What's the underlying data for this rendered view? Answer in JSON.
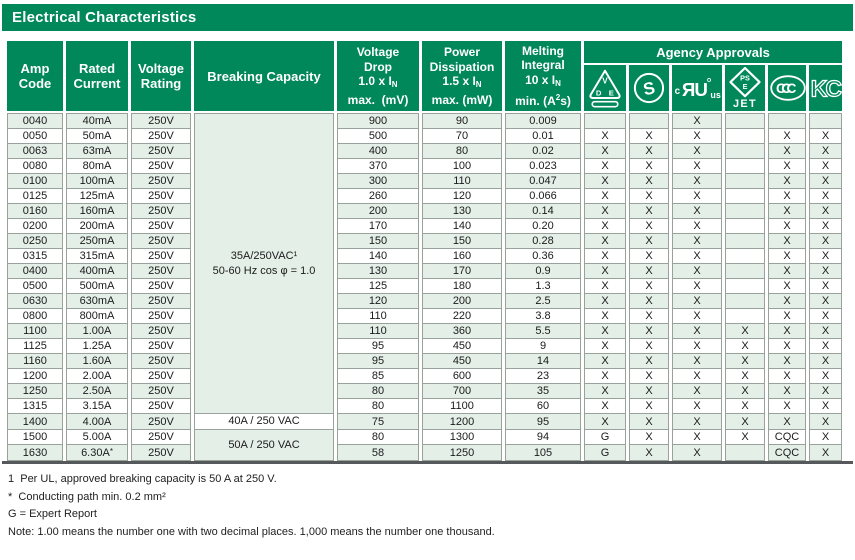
{
  "title": "Electrical Characteristics",
  "colors": {
    "header_green": "#00875A",
    "row_mint": "#E4EFE8",
    "grid_gray": "#98A29B",
    "bottom_bar_gray": "#56595B"
  },
  "headers": {
    "amp_code": "Amp<br>Code",
    "rated_current": "Rated<br>Current",
    "voltage_rating": "Voltage<br>Rating",
    "breaking_capacity": "Breaking Capacity",
    "voltage_drop": "Voltage<br>Drop<br>1.0 x I<sub>N</sub><br>max.&nbsp; (mV)",
    "power_dissipation": "Power<br>Dissipation<br>1.5 x I<sub>N</sub><br>max. (mW)",
    "melting_integral": "Melting<br>Integral<br>10 x I<sub>N</sub><br>min. (A<sup>2</sup>s)"
  },
  "agency": {
    "label": "Agency Approvals",
    "icons": [
      {
        "name": "vde-icon",
        "column": "vde",
        "v": "V",
        "d": "D",
        "e": "E"
      },
      {
        "name": "s-mark-icon",
        "column": "s-mark",
        "s": "S"
      },
      {
        "name": "cul-us-icon",
        "column": "cul-us",
        "c": "c",
        "monogram": "ЯU",
        "us": "us"
      },
      {
        "name": "pse-jet-icon",
        "column": "pse-jet",
        "ps": "PS",
        "e": "E",
        "jet": "JET"
      },
      {
        "name": "ccc-icon",
        "column": "ccc",
        "letters": "CCC"
      },
      {
        "name": "kc-icon",
        "column": "kc",
        "letters": "KC"
      }
    ]
  },
  "table": {
    "breaking_capacity_groups": [
      {
        "start": 0,
        "span": 20,
        "bg": "mint",
        "lines": [
          "35A/250VAC¹",
          "50-60  Hz cos φ = 1.0"
        ]
      },
      {
        "start": 20,
        "span": 1,
        "bg": "white",
        "lines": [
          "40A / 250 VAC"
        ]
      },
      {
        "start": 21,
        "span": 2,
        "bg": "mint",
        "lines": [
          "50A / 250 VAC"
        ]
      }
    ],
    "rows": [
      {
        "amp": "0040",
        "current": "40mA",
        "voltage": "250V",
        "drop": "900",
        "power": "90",
        "melting": "0.009",
        "approvals": [
          "",
          "",
          "X",
          "",
          "",
          ""
        ]
      },
      {
        "amp": "0050",
        "current": "50mA",
        "voltage": "250V",
        "drop": "500",
        "power": "70",
        "melting": "0.01",
        "approvals": [
          "X",
          "X",
          "X",
          "",
          "X",
          "X"
        ]
      },
      {
        "amp": "0063",
        "current": "63mA",
        "voltage": "250V",
        "drop": "400",
        "power": "80",
        "melting": "0.02",
        "approvals": [
          "X",
          "X",
          "X",
          "",
          "X",
          "X"
        ]
      },
      {
        "amp": "0080",
        "current": "80mA",
        "voltage": "250V",
        "drop": "370",
        "power": "100",
        "melting": "0.023",
        "approvals": [
          "X",
          "X",
          "X",
          "",
          "X",
          "X"
        ]
      },
      {
        "amp": "0100",
        "current": "100mA",
        "voltage": "250V",
        "drop": "300",
        "power": "110",
        "melting": "0.047",
        "approvals": [
          "X",
          "X",
          "X",
          "",
          "X",
          "X"
        ]
      },
      {
        "amp": "0125",
        "current": "125mA",
        "voltage": "250V",
        "drop": "260",
        "power": "120",
        "melting": "0.066",
        "approvals": [
          "X",
          "X",
          "X",
          "",
          "X",
          "X"
        ]
      },
      {
        "amp": "0160",
        "current": "160mA",
        "voltage": "250V",
        "drop": "200",
        "power": "130",
        "melting": "0.14",
        "approvals": [
          "X",
          "X",
          "X",
          "",
          "X",
          "X"
        ]
      },
      {
        "amp": "0200",
        "current": "200mA",
        "voltage": "250V",
        "drop": "170",
        "power": "140",
        "melting": "0.20",
        "approvals": [
          "X",
          "X",
          "X",
          "",
          "X",
          "X"
        ]
      },
      {
        "amp": "0250",
        "current": "250mA",
        "voltage": "250V",
        "drop": "150",
        "power": "150",
        "melting": "0.28",
        "approvals": [
          "X",
          "X",
          "X",
          "",
          "X",
          "X"
        ]
      },
      {
        "amp": "0315",
        "current": "315mA",
        "voltage": "250V",
        "drop": "140",
        "power": "160",
        "melting": "0.36",
        "approvals": [
          "X",
          "X",
          "X",
          "",
          "X",
          "X"
        ]
      },
      {
        "amp": "0400",
        "current": "400mA",
        "voltage": "250V",
        "drop": "130",
        "power": "170",
        "melting": "0.9",
        "approvals": [
          "X",
          "X",
          "X",
          "",
          "X",
          "X"
        ]
      },
      {
        "amp": "0500",
        "current": "500mA",
        "voltage": "250V",
        "drop": "125",
        "power": "180",
        "melting": "1.3",
        "approvals": [
          "X",
          "X",
          "X",
          "",
          "X",
          "X"
        ]
      },
      {
        "amp": "0630",
        "current": "630mA",
        "voltage": "250V",
        "drop": "120",
        "power": "200",
        "melting": "2.5",
        "approvals": [
          "X",
          "X",
          "X",
          "",
          "X",
          "X"
        ]
      },
      {
        "amp": "0800",
        "current": "800mA",
        "voltage": "250V",
        "drop": "110",
        "power": "220",
        "melting": "3.8",
        "approvals": [
          "X",
          "X",
          "X",
          "",
          "X",
          "X"
        ]
      },
      {
        "amp": "1100",
        "current": "1.00A",
        "voltage": "250V",
        "drop": "110",
        "power": "360",
        "melting": "5.5",
        "approvals": [
          "X",
          "X",
          "X",
          "X",
          "X",
          "X"
        ]
      },
      {
        "amp": "1125",
        "current": "1.25A",
        "voltage": "250V",
        "drop": "95",
        "power": "450",
        "melting": "9",
        "approvals": [
          "X",
          "X",
          "X",
          "X",
          "X",
          "X"
        ]
      },
      {
        "amp": "1160",
        "current": "1.60A",
        "voltage": "250V",
        "drop": "95",
        "power": "450",
        "melting": "14",
        "approvals": [
          "X",
          "X",
          "X",
          "X",
          "X",
          "X"
        ]
      },
      {
        "amp": "1200",
        "current": "2.00A",
        "voltage": "250V",
        "drop": "85",
        "power": "600",
        "melting": "23",
        "approvals": [
          "X",
          "X",
          "X",
          "X",
          "X",
          "X"
        ]
      },
      {
        "amp": "1250",
        "current": "2.50A",
        "voltage": "250V",
        "drop": "80",
        "power": "700",
        "melting": "35",
        "approvals": [
          "X",
          "X",
          "X",
          "X",
          "X",
          "X"
        ]
      },
      {
        "amp": "1315",
        "current": "3.15A",
        "voltage": "250V",
        "drop": "80",
        "power": "1100",
        "melting": "60",
        "approvals": [
          "X",
          "X",
          "X",
          "X",
          "X",
          "X"
        ]
      },
      {
        "amp": "1400",
        "current": "4.00A",
        "voltage": "250V",
        "drop": "75",
        "power": "1200",
        "melting": "95",
        "approvals": [
          "X",
          "X",
          "X",
          "X",
          "X",
          "X"
        ]
      },
      {
        "amp": "1500",
        "current": "5.00A",
        "voltage": "250V",
        "drop": "80",
        "power": "1300",
        "melting": "94",
        "approvals": [
          "G",
          "X",
          "X",
          "X",
          "CQC",
          "X"
        ]
      },
      {
        "amp": "1630",
        "current": "6.30A*",
        "voltage": "250V",
        "drop": "58",
        "power": "1250",
        "melting": "105",
        "approvals": [
          "G",
          "X",
          "X",
          "",
          "CQC",
          "X"
        ]
      }
    ]
  },
  "footnotes": [
    "1  Per UL, approved breaking capacity is 50 A at 250 V.",
    "*  Conducting path min. 0.2 mm²",
    "G = Expert Report",
    "Note: 1.00 means the number one with two decimal places. 1,000 means the number one thousand."
  ]
}
